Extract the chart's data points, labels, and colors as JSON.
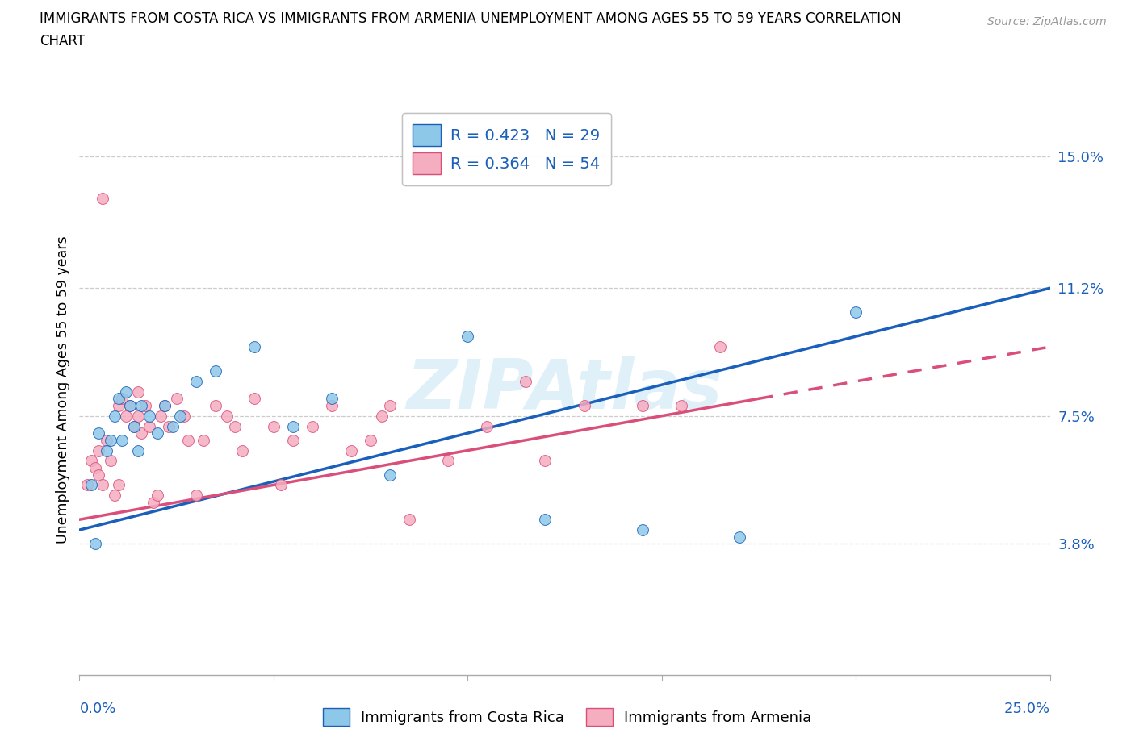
{
  "title_line1": "IMMIGRANTS FROM COSTA RICA VS IMMIGRANTS FROM ARMENIA UNEMPLOYMENT AMONG AGES 55 TO 59 YEARS CORRELATION",
  "title_line2": "CHART",
  "source": "Source: ZipAtlas.com",
  "ylabel": "Unemployment Among Ages 55 to 59 years",
  "ytick_labels": [
    "3.8%",
    "7.5%",
    "11.2%",
    "15.0%"
  ],
  "ytick_values": [
    3.8,
    7.5,
    11.2,
    15.0
  ],
  "xlim": [
    0.0,
    25.0
  ],
  "ylim": [
    0.0,
    16.5
  ],
  "ylim_bottom_extra": 2.5,
  "legend_r1": "R = 0.423   N = 29",
  "legend_r2": "R = 0.364   N = 54",
  "watermark": "ZIPAtlas",
  "color_cr": "#8ec8e8",
  "color_arm": "#f5adc0",
  "trendline_cr_color": "#1a5fba",
  "trendline_arm_color": "#d94f7a",
  "legend_label_cr": "Immigrants from Costa Rica",
  "legend_label_arm": "Immigrants from Armenia",
  "cr_trend_x0": 0.0,
  "cr_trend_y0": 4.2,
  "cr_trend_x1": 25.0,
  "cr_trend_y1": 11.2,
  "arm_trend_x0": 0.0,
  "arm_trend_y0": 4.5,
  "arm_trend_x1": 25.0,
  "arm_trend_y1": 9.5,
  "arm_solid_end": 17.5,
  "costa_rica_x": [
    0.3,
    0.5,
    0.7,
    0.9,
    1.0,
    1.1,
    1.2,
    1.4,
    1.5,
    1.6,
    1.8,
    2.0,
    2.2,
    2.4,
    2.6,
    3.0,
    3.5,
    4.5,
    5.5,
    6.5,
    8.0,
    10.0,
    12.0,
    14.5,
    17.0,
    20.0,
    0.4,
    0.8,
    1.3
  ],
  "costa_rica_y": [
    5.5,
    7.0,
    6.5,
    7.5,
    8.0,
    6.8,
    8.2,
    7.2,
    6.5,
    7.8,
    7.5,
    7.0,
    7.8,
    7.2,
    7.5,
    8.5,
    8.8,
    9.5,
    7.2,
    8.0,
    5.8,
    9.8,
    4.5,
    4.2,
    4.0,
    10.5,
    3.8,
    6.8,
    7.8
  ],
  "armenia_x": [
    0.2,
    0.3,
    0.4,
    0.5,
    0.5,
    0.6,
    0.7,
    0.8,
    0.9,
    1.0,
    1.0,
    1.1,
    1.2,
    1.3,
    1.4,
    1.5,
    1.5,
    1.6,
    1.7,
    1.8,
    1.9,
    2.0,
    2.1,
    2.2,
    2.3,
    2.5,
    2.7,
    2.8,
    3.0,
    3.2,
    3.5,
    3.8,
    4.0,
    4.2,
    4.5,
    5.0,
    5.5,
    6.0,
    6.5,
    7.0,
    7.5,
    8.0,
    8.5,
    9.5,
    10.5,
    11.5,
    12.0,
    13.0,
    14.5,
    15.5,
    16.5,
    5.2,
    0.6,
    7.8
  ],
  "armenia_y": [
    5.5,
    6.2,
    6.0,
    5.8,
    6.5,
    5.5,
    6.8,
    6.2,
    5.2,
    5.5,
    7.8,
    8.0,
    7.5,
    7.8,
    7.2,
    7.5,
    8.2,
    7.0,
    7.8,
    7.2,
    5.0,
    5.2,
    7.5,
    7.8,
    7.2,
    8.0,
    7.5,
    6.8,
    5.2,
    6.8,
    7.8,
    7.5,
    7.2,
    6.5,
    8.0,
    7.2,
    6.8,
    7.2,
    7.8,
    6.5,
    6.8,
    7.8,
    4.5,
    6.2,
    7.2,
    8.5,
    6.2,
    7.8,
    7.8,
    7.8,
    9.5,
    5.5,
    13.8,
    7.5
  ]
}
